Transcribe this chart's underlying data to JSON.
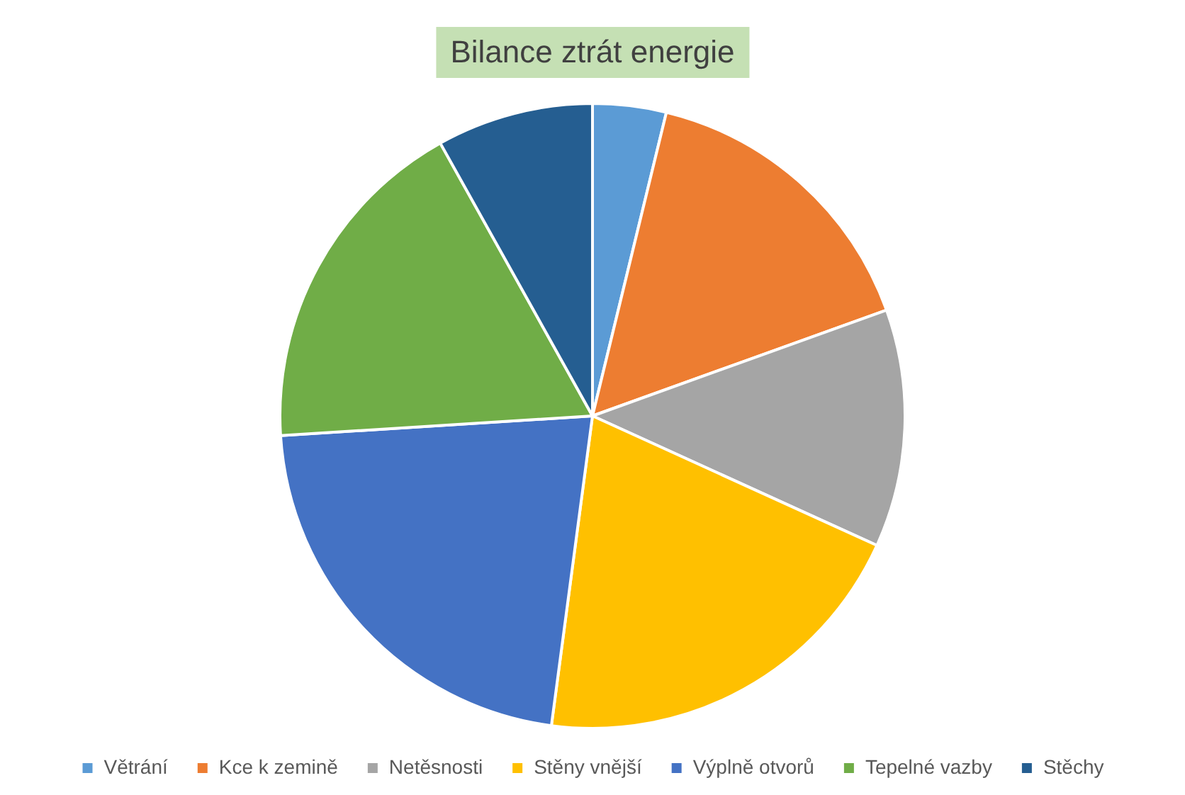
{
  "chart_data": {
    "type": "pie",
    "title": "Bilance ztrát energie",
    "categories": [
      "Větrání",
      "Kce k zemině",
      "Netěsnosti",
      "Stěny vnější",
      "Výplně otvorů",
      "Tepelné vazby",
      "Stěchy"
    ],
    "values": [
      3.8,
      15.7,
      12.3,
      20.3,
      21.9,
      17.9,
      8.1
    ],
    "colors": [
      "#5b9bd5",
      "#ed7d31",
      "#a5a5a5",
      "#ffc000",
      "#4472c4",
      "#70ad47",
      "#255e91"
    ],
    "legend": "bottom"
  }
}
